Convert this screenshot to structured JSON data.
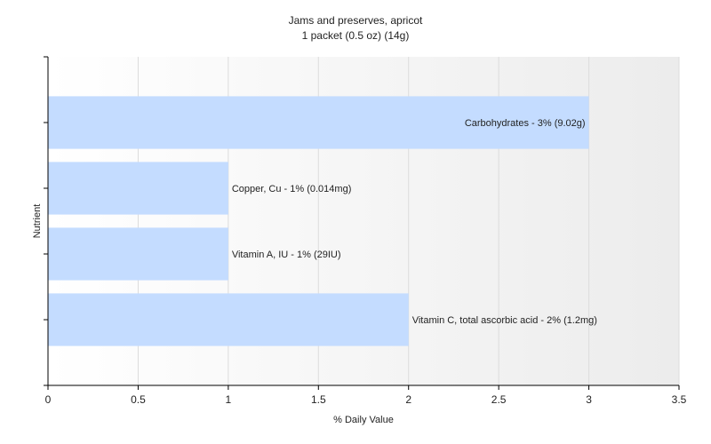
{
  "chart_data": {
    "type": "bar",
    "orientation": "horizontal",
    "title": "Jams and preserves, apricot",
    "subtitle": "1 packet (0.5 oz) (14g)",
    "xlabel": "% Daily Value",
    "ylabel": "Nutrient",
    "xlim": [
      0,
      3.5
    ],
    "xticks": [
      "0",
      "0.5",
      "1",
      "1.5",
      "2",
      "2.5",
      "3",
      "3.5"
    ],
    "grid": true,
    "bar_color": "#c4dcff",
    "categories": [
      "Carbohydrates",
      "Copper, Cu",
      "Vitamin A, IU",
      "Vitamin C, total ascorbic acid"
    ],
    "values": [
      3,
      1,
      1,
      2
    ],
    "data_labels": [
      "Carbohydrates - 3% (9.02g)",
      "Copper, Cu - 1% (0.014mg)",
      "Vitamin A, IU - 1% (29IU)",
      "Vitamin C, total ascorbic acid - 2% (1.2mg)"
    ]
  }
}
